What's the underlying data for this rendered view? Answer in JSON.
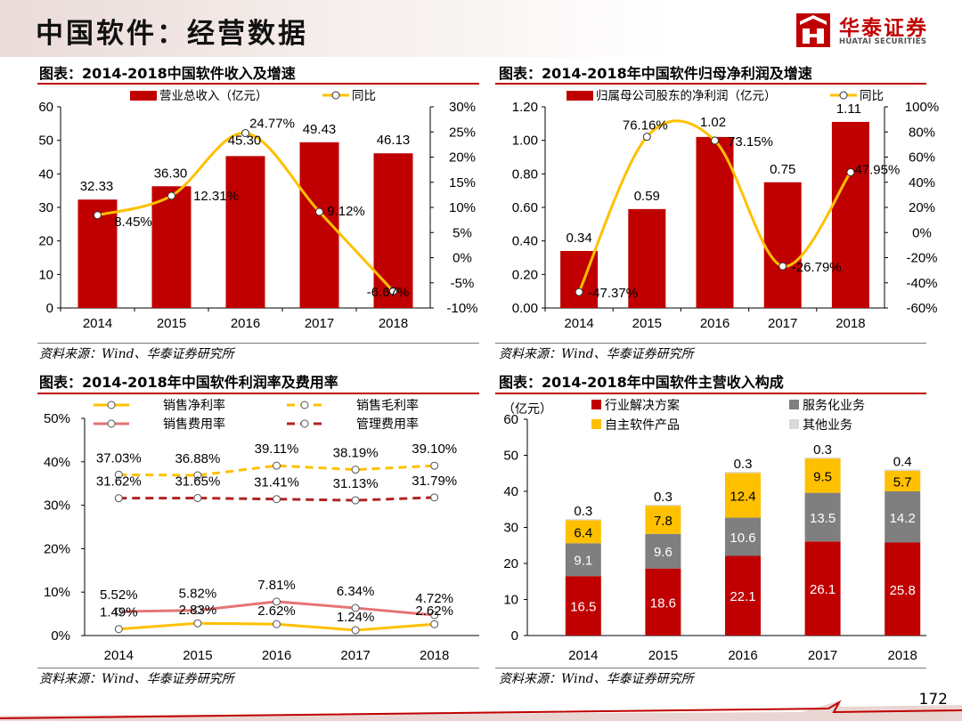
{
  "page": {
    "title": "中国软件：经营数据",
    "page_number": "172",
    "logo": {
      "cn": "华泰证券",
      "en": "HUATAI SECURITIES"
    },
    "colors": {
      "red": "#c00000",
      "yellow": "#ffc000",
      "gray": "#7f7f7f",
      "lightgray": "#d9d9d9",
      "darkred": "#b22222",
      "salmon": "#e57373"
    }
  },
  "panels": {
    "p1": {
      "title": "图表：2014-2018中国软件收入及增速",
      "source": "资料来源：Wind、华泰证券研究所"
    },
    "p2": {
      "title": "图表：2014-2018年中国软件归母净利润及增速",
      "source": "资料来源：Wind、华泰证券研究所"
    },
    "p3": {
      "title": "图表：2014-2018年中国软件利润率及费用率",
      "source": "资料来源：Wind、华泰证券研究所"
    },
    "p4": {
      "title": "图表：2014-2018年中国软件主营收入构成",
      "source": "资料来源：Wind、华泰证券研究所"
    }
  },
  "chart_data": [
    {
      "id": "revenue",
      "type": "bar",
      "title": "图表：2014-2018中国软件收入及增速",
      "categories": [
        "2014",
        "2015",
        "2016",
        "2017",
        "2018"
      ],
      "series": [
        {
          "name": "营业总收入（亿元）",
          "kind": "bar",
          "axis": "left",
          "values": [
            32.33,
            36.3,
            45.3,
            49.43,
            46.13
          ],
          "labels": [
            "32.33",
            "36.30",
            "45.30",
            "49.43",
            "46.13"
          ]
        },
        {
          "name": "同比",
          "kind": "line",
          "axis": "right",
          "values": [
            8.45,
            12.31,
            24.77,
            9.12,
            -6.67
          ],
          "labels": [
            "8.45%",
            "12.31%",
            "24.77%",
            "9.12%",
            "-6.67%"
          ]
        }
      ],
      "left_axis": {
        "min": 0,
        "max": 60,
        "ticks": [
          "0",
          "10",
          "20",
          "30",
          "40",
          "50",
          "60"
        ]
      },
      "right_axis": {
        "min": -10,
        "max": 30,
        "ticks": [
          "-10%",
          "-5%",
          "0%",
          "5%",
          "10%",
          "15%",
          "20%",
          "25%",
          "30%"
        ]
      },
      "legend": {
        "position": "top"
      }
    },
    {
      "id": "net_profit",
      "type": "bar",
      "title": "图表：2014-2018年中国软件归母净利润及增速",
      "categories": [
        "2014",
        "2015",
        "2016",
        "2017",
        "2018"
      ],
      "series": [
        {
          "name": "归属母公司股东的净利润（亿元）",
          "kind": "bar",
          "axis": "left",
          "values": [
            0.34,
            0.59,
            1.02,
            0.75,
            1.11
          ],
          "labels": [
            "0.34",
            "0.59",
            "1.02",
            "0.75",
            "1.11"
          ]
        },
        {
          "name": "同比",
          "kind": "line",
          "axis": "right",
          "values": [
            -47.37,
            76.16,
            73.15,
            -26.79,
            47.95
          ],
          "labels": [
            "-47.37%",
            "76.16%",
            "73.15%",
            "-26.79%",
            "47.95%"
          ]
        }
      ],
      "left_axis": {
        "min": 0,
        "max": 1.2,
        "ticks": [
          "0.00",
          "0.20",
          "0.40",
          "0.60",
          "0.80",
          "1.00",
          "1.20"
        ]
      },
      "right_axis": {
        "min": -60,
        "max": 100,
        "ticks": [
          "-60%",
          "-40%",
          "-20%",
          "0%",
          "20%",
          "40%",
          "60%",
          "80%",
          "100%"
        ]
      },
      "legend": {
        "position": "top"
      }
    },
    {
      "id": "margins",
      "type": "line",
      "title": "图表：2014-2018年中国软件利润率及费用率",
      "categories": [
        "2014",
        "2015",
        "2016",
        "2017",
        "2018"
      ],
      "series": [
        {
          "name": "销售净利率",
          "values": [
            1.49,
            2.83,
            2.62,
            1.24,
            2.62
          ],
          "labels": [
            "1.49%",
            "2.83%",
            "2.62%",
            "1.24%",
            "2.62%"
          ],
          "color": "#ffc000",
          "dash": false
        },
        {
          "name": "销售毛利率",
          "values": [
            37.03,
            36.88,
            39.11,
            38.19,
            39.1
          ],
          "labels": [
            "37.03%",
            "36.88%",
            "39.11%",
            "38.19%",
            "39.10%"
          ],
          "color": "#ffc000",
          "dash": true
        },
        {
          "name": "销售费用率",
          "values": [
            5.52,
            5.82,
            7.81,
            6.34,
            4.72
          ],
          "labels": [
            "5.52%",
            "5.82%",
            "7.81%",
            "6.34%",
            "4.72%"
          ],
          "color": "#e57373",
          "dash": false
        },
        {
          "name": "管理费用率",
          "values": [
            31.62,
            31.65,
            31.41,
            31.13,
            31.79
          ],
          "labels": [
            "31.62%",
            "31.65%",
            "31.41%",
            "31.13%",
            "31.79%"
          ],
          "color": "#b22222",
          "dash": true
        }
      ],
      "y_axis": {
        "min": 0,
        "max": 50,
        "ticks": [
          "0%",
          "10%",
          "20%",
          "30%",
          "40%",
          "50%"
        ]
      },
      "legend": {
        "position": "top"
      }
    },
    {
      "id": "composition",
      "type": "bar",
      "stacked": true,
      "title": "图表：2014-2018年中国软件主营收入构成",
      "ylabel": "（亿元）",
      "categories": [
        "2014",
        "2015",
        "2016",
        "2017",
        "2018"
      ],
      "series": [
        {
          "name": "行业解决方案",
          "values": [
            16.5,
            18.6,
            22.1,
            26.1,
            25.8
          ],
          "labels": [
            "16.5",
            "18.6",
            "22.1",
            "26.1",
            "25.8"
          ],
          "color": "#c00000"
        },
        {
          "name": "服务化业务",
          "values": [
            9.1,
            9.6,
            10.6,
            13.5,
            14.2
          ],
          "labels": [
            "9.1",
            "9.6",
            "10.6",
            "13.5",
            "14.2"
          ],
          "color": "#7f7f7f"
        },
        {
          "name": "自主软件产品",
          "values": [
            6.4,
            7.8,
            12.4,
            9.5,
            5.7
          ],
          "labels": [
            "6.4",
            "7.8",
            "12.4",
            "9.5",
            "5.7"
          ],
          "color": "#ffc000"
        },
        {
          "name": "其他业务",
          "values": [
            0.3,
            0.3,
            0.3,
            0.3,
            0.4
          ],
          "labels": [
            "0.3",
            "0.3",
            "0.3",
            "0.3",
            "0.4"
          ],
          "color": "#d9d9d9"
        }
      ],
      "y_axis": {
        "min": 0,
        "max": 60,
        "ticks": [
          "0",
          "10",
          "20",
          "30",
          "40",
          "50",
          "60"
        ]
      },
      "legend": {
        "position": "top"
      }
    }
  ]
}
